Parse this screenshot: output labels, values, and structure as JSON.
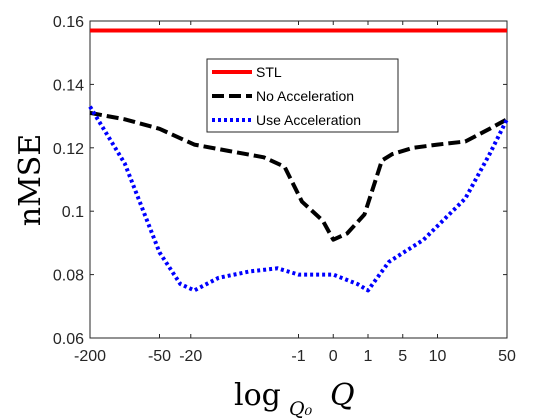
{
  "chart_data": {
    "type": "line",
    "xlabel": "log",
    "xlabel_sub": "Q₀",
    "xlabel_var": "Q",
    "ylabel": "nMSE",
    "ylim": [
      0.06,
      0.16
    ],
    "yticks": [
      0.06,
      0.08,
      0.1,
      0.12,
      0.14,
      0.16
    ],
    "ytick_labels": [
      "0.06",
      "0.08",
      "0.1",
      "0.12",
      "0.14",
      "0.16"
    ],
    "x_categories": [
      "-200",
      "-50",
      "-20",
      "-1",
      "0",
      "1",
      "5",
      "10",
      "50"
    ],
    "x_category_index": [
      0,
      1,
      1.45,
      3,
      3.5,
      4,
      4.5,
      5,
      6
    ],
    "xlim_index": [
      0,
      6
    ],
    "grid": false,
    "legend_placement": "top-center",
    "series": [
      {
        "name": "STL",
        "color": "#ff0000",
        "style": "solid",
        "points": [
          [
            0,
            0.157
          ],
          [
            6,
            0.157
          ]
        ]
      },
      {
        "name": "No Acceleration",
        "color": "#000000",
        "style": "dashed",
        "points": [
          [
            0,
            0.131
          ],
          [
            0.5,
            0.129
          ],
          [
            1,
            0.126
          ],
          [
            1.5,
            0.121
          ],
          [
            2,
            0.119
          ],
          [
            2.5,
            0.117
          ],
          [
            2.8,
            0.114
          ],
          [
            3.05,
            0.103
          ],
          [
            3.35,
            0.097
          ],
          [
            3.5,
            0.091
          ],
          [
            3.7,
            0.093
          ],
          [
            3.95,
            0.099
          ],
          [
            4.2,
            0.116
          ],
          [
            4.35,
            0.118
          ],
          [
            4.65,
            0.12
          ],
          [
            5,
            0.121
          ],
          [
            5.4,
            0.122
          ],
          [
            5.75,
            0.126
          ],
          [
            6,
            0.129
          ]
        ]
      },
      {
        "name": "Use Acceleration",
        "color": "#0000ff",
        "style": "dotted",
        "points": [
          [
            0,
            0.133
          ],
          [
            0.5,
            0.115
          ],
          [
            1,
            0.087
          ],
          [
            1.3,
            0.077
          ],
          [
            1.5,
            0.075
          ],
          [
            1.85,
            0.079
          ],
          [
            2.3,
            0.081
          ],
          [
            2.7,
            0.082
          ],
          [
            3.0,
            0.08
          ],
          [
            3.5,
            0.08
          ],
          [
            3.85,
            0.077
          ],
          [
            4.0,
            0.075
          ],
          [
            4.3,
            0.084
          ],
          [
            4.8,
            0.091
          ],
          [
            5.4,
            0.104
          ],
          [
            5.75,
            0.118
          ],
          [
            6,
            0.129
          ]
        ]
      }
    ]
  }
}
